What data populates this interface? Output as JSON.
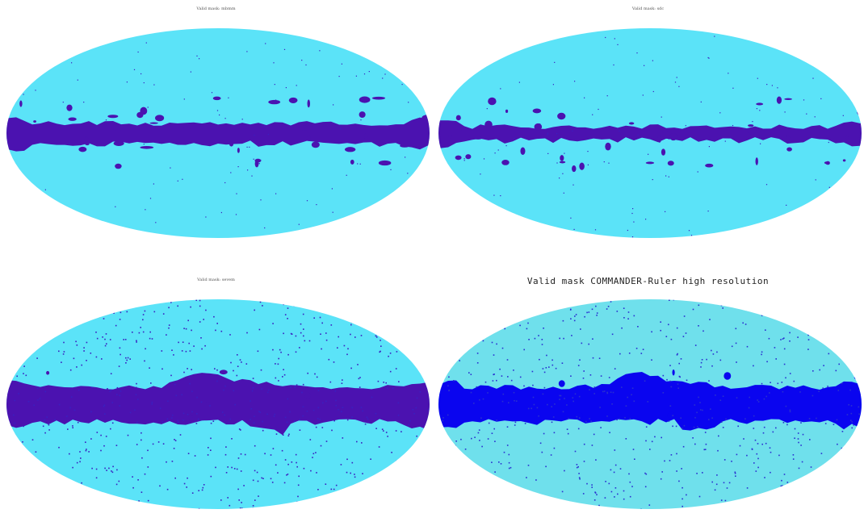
{
  "panels": [
    {
      "title": "Valid mask: mbmm",
      "ocean": "#5be3f8",
      "mask": "#4b12b0",
      "dots": "#3a20c0",
      "style": "patchy"
    },
    {
      "title": "Valid mask: sdc",
      "ocean": "#5be3f8",
      "mask": "#4b12b0",
      "dots": "#3a20c0",
      "style": "thin"
    },
    {
      "title": "Valid mask: sevem",
      "ocean": "#5be3f8",
      "mask": "#4b12b0",
      "dots": "#3a20c0",
      "style": "broad"
    },
    {
      "title": "Valid mask COMMANDER-Ruler high resolution",
      "ocean": "#6fe0ec",
      "mask": "#0a05ef",
      "dots": "#2a30d0",
      "style": "broad"
    }
  ]
}
